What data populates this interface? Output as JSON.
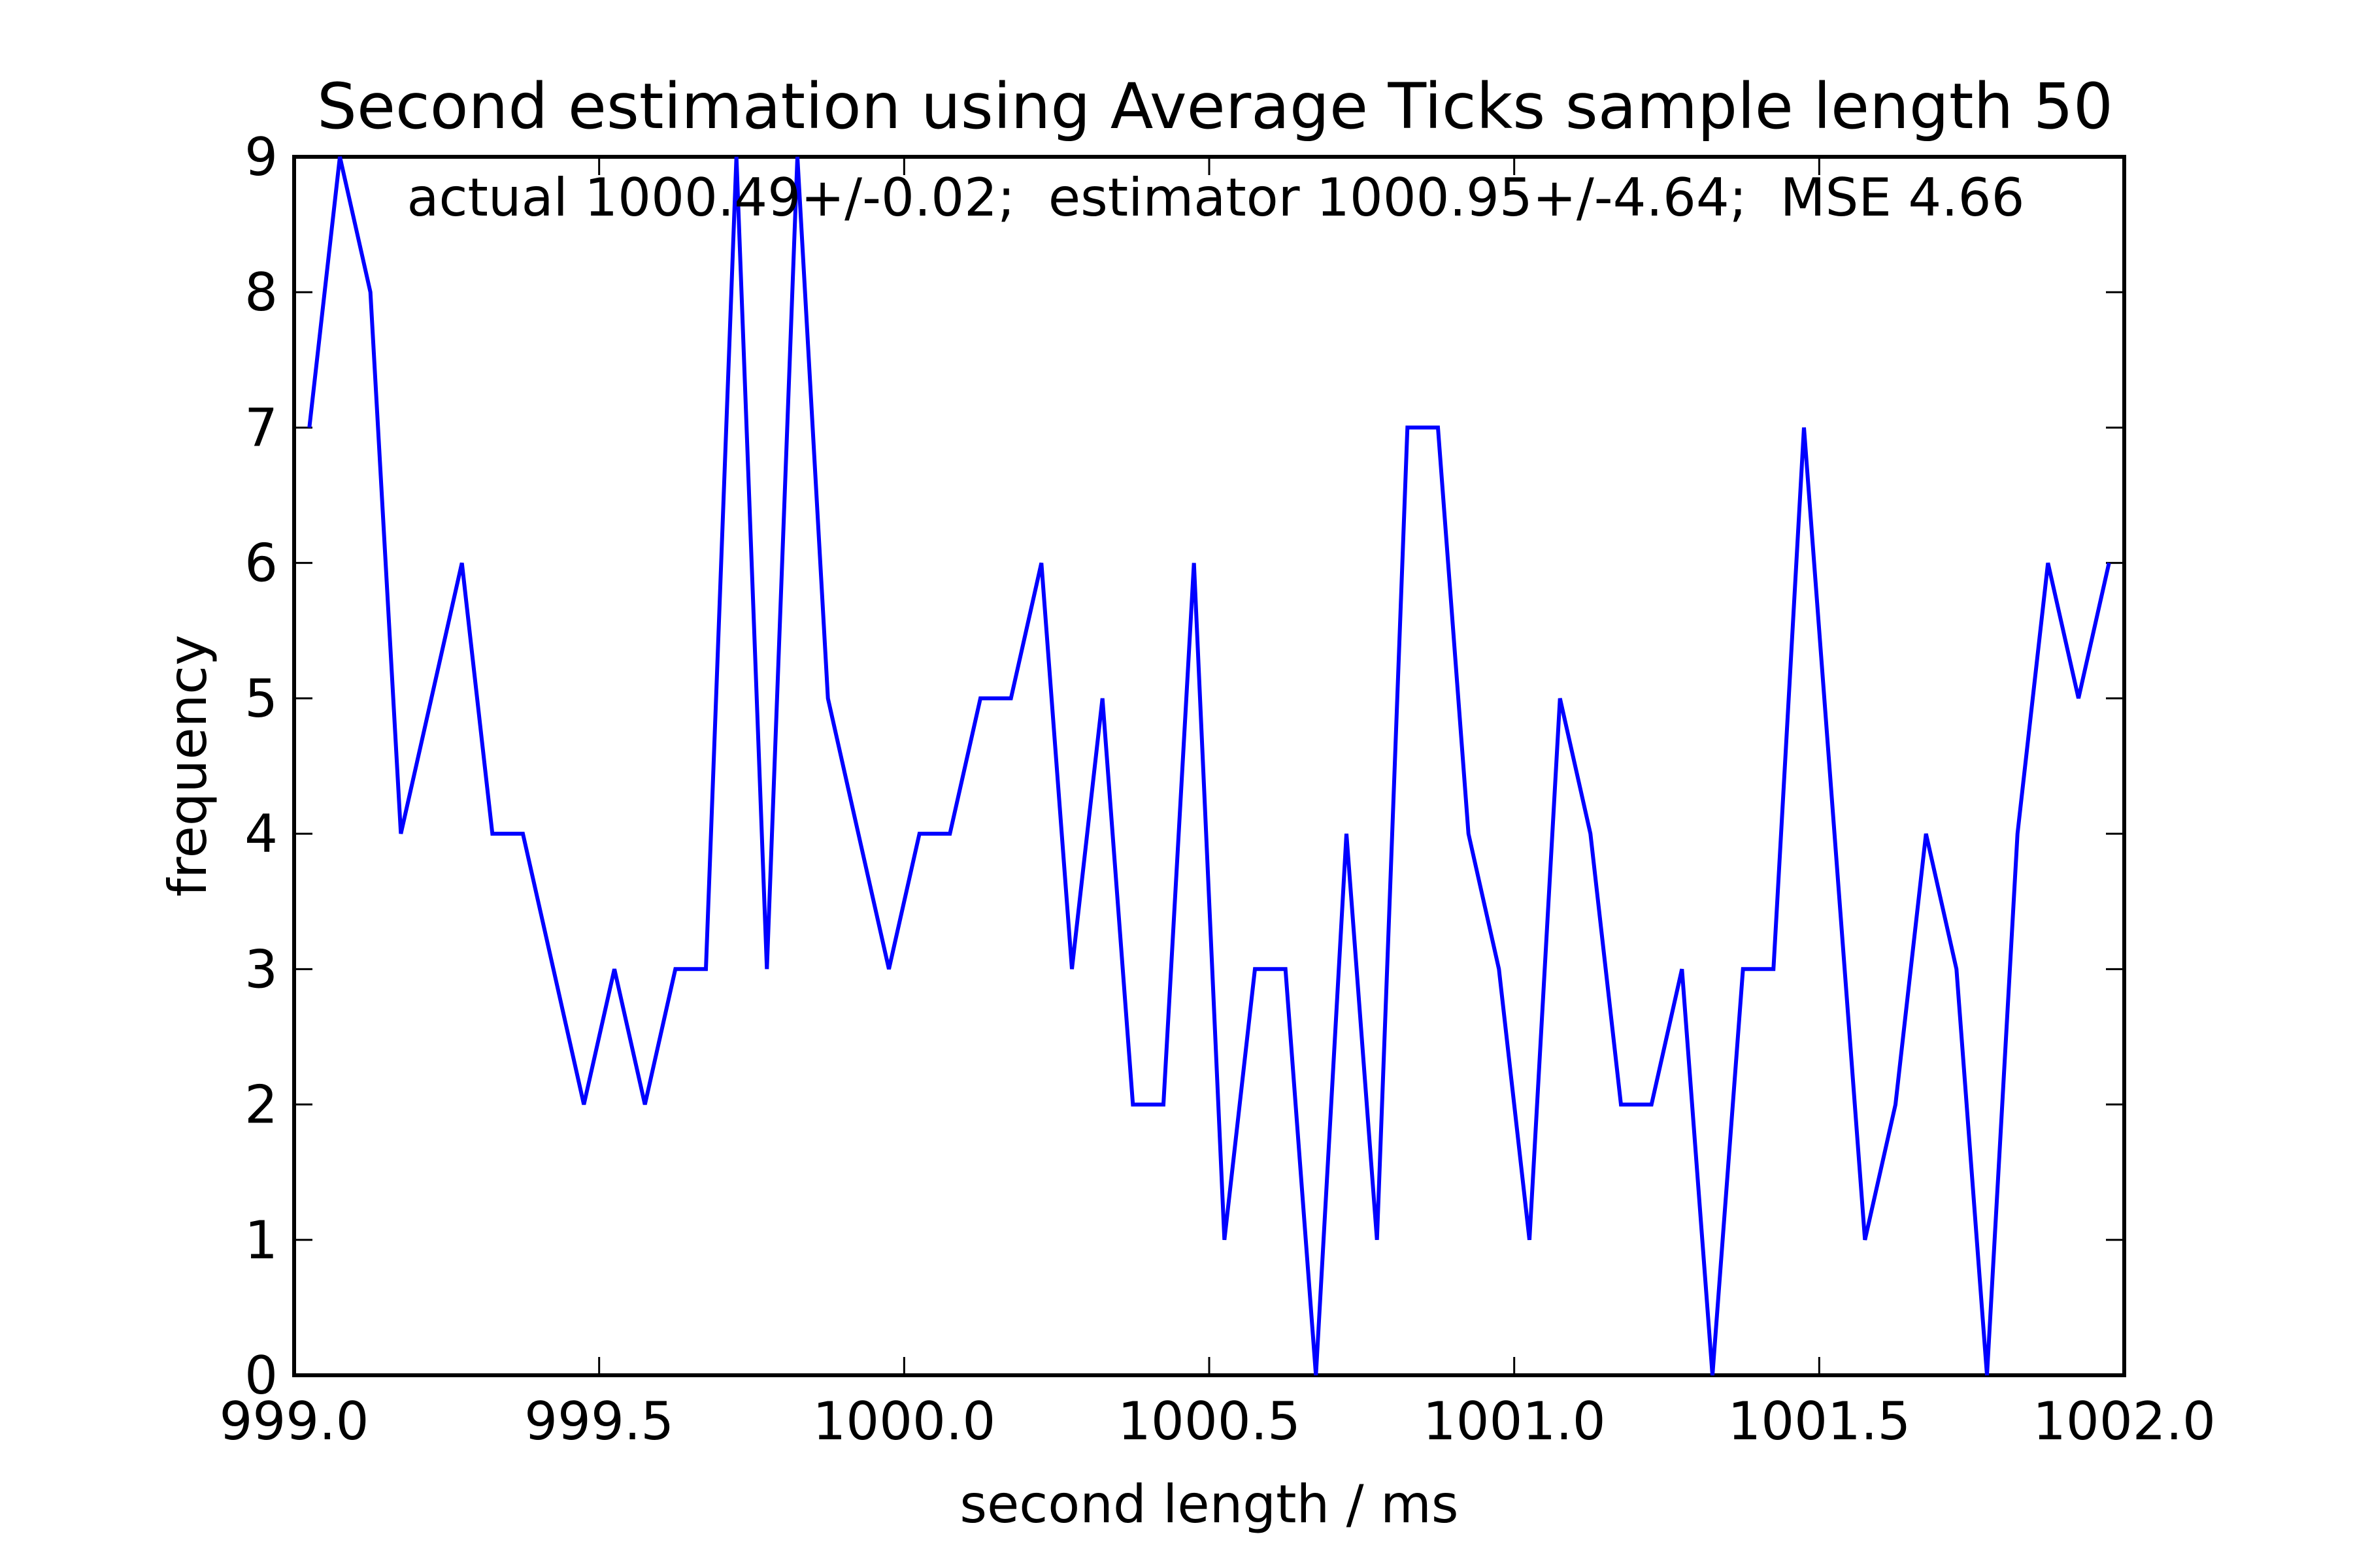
{
  "chart_data": {
    "type": "line",
    "title": "Second estimation using Average Ticks sample length 50",
    "annotation": "actual 1000.49+/-0.02;  estimator 1000.95+/-4.64;  MSE 4.66",
    "xlabel": "second length / ms",
    "ylabel": "frequency",
    "xlim": [
      999.0,
      1002.0
    ],
    "ylim": [
      0,
      9
    ],
    "xticks": [
      "999.0",
      "999.5",
      "1000.0",
      "1000.5",
      "1001.0",
      "1001.5",
      "1002.0"
    ],
    "yticks": [
      "0",
      "1",
      "2",
      "3",
      "4",
      "5",
      "6",
      "7",
      "8",
      "9"
    ],
    "grid": false,
    "line_color": "#0000ff",
    "series": [
      {
        "x": [
          999.025,
          999.075,
          999.125,
          999.175,
          999.225,
          999.275,
          999.325,
          999.375,
          999.425,
          999.475,
          999.525,
          999.575,
          999.625,
          999.675,
          999.725,
          999.775,
          999.825,
          999.875,
          999.925,
          999.975,
          1000.025,
          1000.075,
          1000.125,
          1000.175,
          1000.225,
          1000.275,
          1000.325,
          1000.375,
          1000.425,
          1000.475,
          1000.525,
          1000.575,
          1000.625,
          1000.675,
          1000.725,
          1000.775,
          1000.825,
          1000.875,
          1000.925,
          1000.975,
          1001.025,
          1001.075,
          1001.125,
          1001.175,
          1001.225,
          1001.275,
          1001.325,
          1001.375,
          1001.425,
          1001.475,
          1001.525,
          1001.575,
          1001.625,
          1001.675,
          1001.725,
          1001.775,
          1001.825,
          1001.875,
          1001.925,
          1001.975
        ],
        "y": [
          7,
          9,
          8,
          4,
          5,
          6,
          4,
          4,
          3,
          2,
          3,
          2,
          3,
          3,
          9,
          3,
          9,
          5,
          4,
          3,
          4,
          4,
          5,
          5,
          6,
          3,
          5,
          2,
          2,
          6,
          1,
          3,
          3,
          0,
          4,
          1,
          7,
          7,
          4,
          3,
          1,
          5,
          4,
          2,
          2,
          3,
          0,
          3,
          3,
          7,
          4,
          1,
          2,
          4,
          3,
          0,
          4,
          6,
          5,
          6
        ]
      }
    ]
  }
}
